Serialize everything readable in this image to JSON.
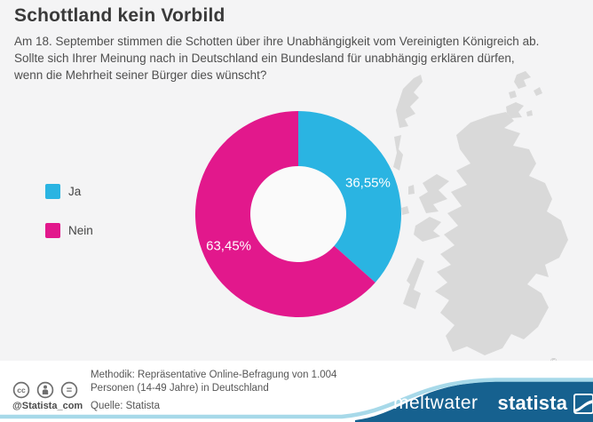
{
  "header": {
    "title": "Schottland kein Vorbild",
    "subtitle": "Am 18. September stimmen die Schotten über ihre Unabhängigkeit vom Vereinigten Königreich ab. Sollte sich Ihrer Meinung nach in Deutschland ein Bundesland für unabhängig erklären dürfen, wenn die Mehrheit seiner Bürger dies wünscht?"
  },
  "legend": {
    "items": [
      {
        "label": "Ja",
        "color": "#2ab4e2"
      },
      {
        "label": "Nein",
        "color": "#e2188c"
      }
    ]
  },
  "chart_data": {
    "type": "pie",
    "subtype": "donut",
    "categories": [
      "Ja",
      "Nein"
    ],
    "values": [
      36.55,
      63.45
    ],
    "labels": [
      "36,55%",
      "63,45%"
    ],
    "colors": [
      "#2ab4e2",
      "#e2188c"
    ],
    "title": "Schottland kein Vorbild",
    "legend_position": "left",
    "start_angle_deg": 0,
    "direction": "clockwise",
    "hole_color": "#fafafa",
    "label_color": "#ffffff"
  },
  "map": {
    "name": "scotland-silhouette",
    "color": "#d9d9d9",
    "copyright": "©"
  },
  "footer": {
    "methodology": "Methodik: Repräsentative Online-Befragung von 1.004 Personen (14-49 Jahre) in Deutschland",
    "source": "Quelle: Statista",
    "cc_handle": "@Statista_com",
    "cc_icons": [
      "cc-icon",
      "cc-by-person-icon",
      "cc-nd-equals-icon"
    ]
  },
  "brandbar": {
    "meltwater_label": "meltwater",
    "statista_label": "statista",
    "bar_color": "#16618f",
    "wave_color": "#a7d9e9"
  }
}
